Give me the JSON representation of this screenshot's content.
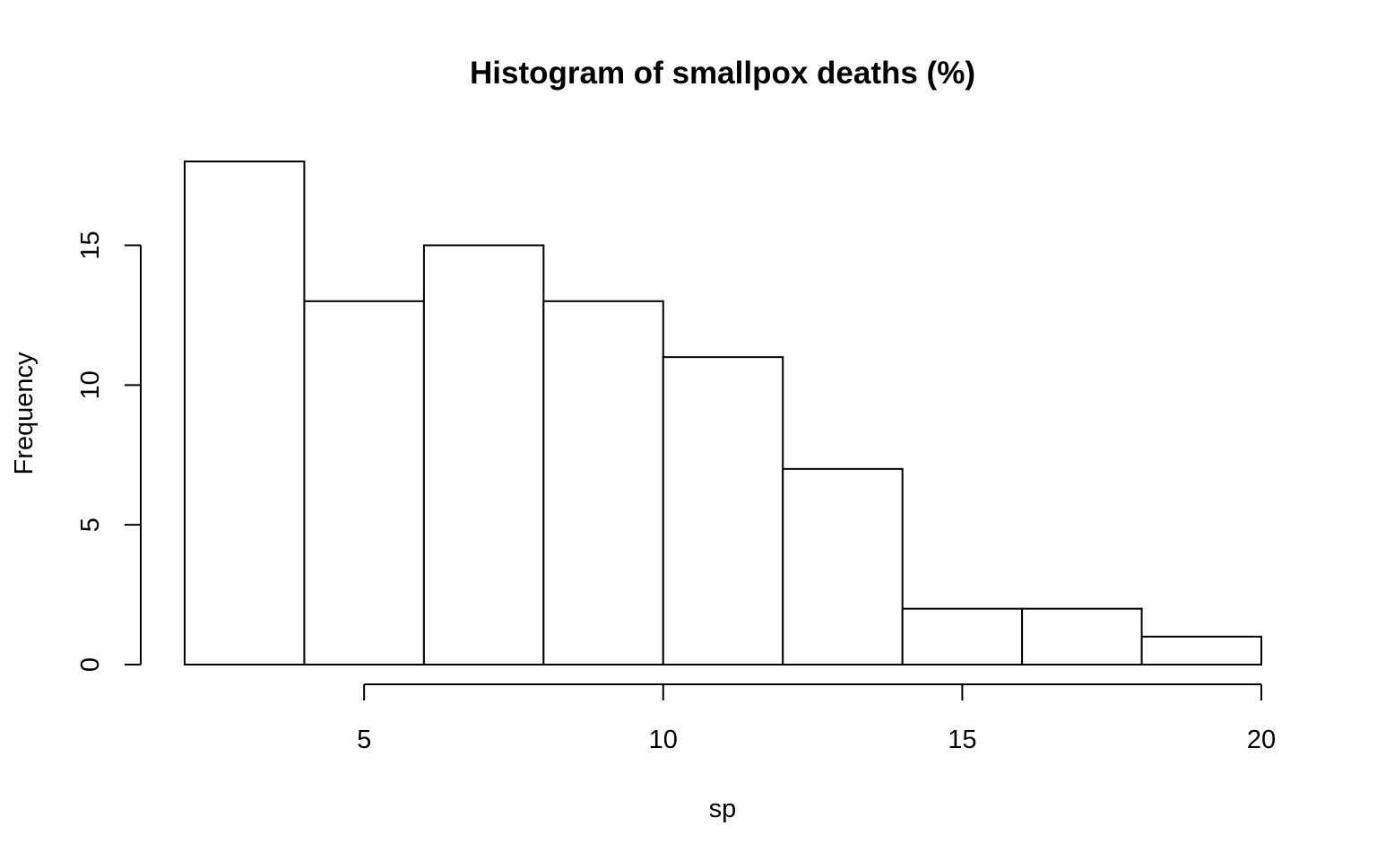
{
  "chart_data": {
    "type": "bar",
    "title": "Histogram of smallpox deaths (%)",
    "xlabel": "sp",
    "ylabel": "Frequency",
    "bins": [
      {
        "from": 2,
        "to": 4,
        "count": 18
      },
      {
        "from": 4,
        "to": 6,
        "count": 13
      },
      {
        "from": 6,
        "to": 8,
        "count": 15
      },
      {
        "from": 8,
        "to": 10,
        "count": 13
      },
      {
        "from": 10,
        "to": 12,
        "count": 11
      },
      {
        "from": 12,
        "to": 14,
        "count": 7
      },
      {
        "from": 14,
        "to": 16,
        "count": 2
      },
      {
        "from": 16,
        "to": 18,
        "count": 2
      },
      {
        "from": 18,
        "to": 20,
        "count": 1
      }
    ],
    "x_ticks": [
      "5",
      "10",
      "15",
      "20"
    ],
    "y_ticks": [
      "0",
      "5",
      "10",
      "15"
    ],
    "xlim": [
      2,
      20
    ],
    "ylim": [
      0,
      18
    ],
    "grid": false,
    "colors": {
      "bar_fill": "#ffffff",
      "bar_stroke": "#000000"
    }
  }
}
